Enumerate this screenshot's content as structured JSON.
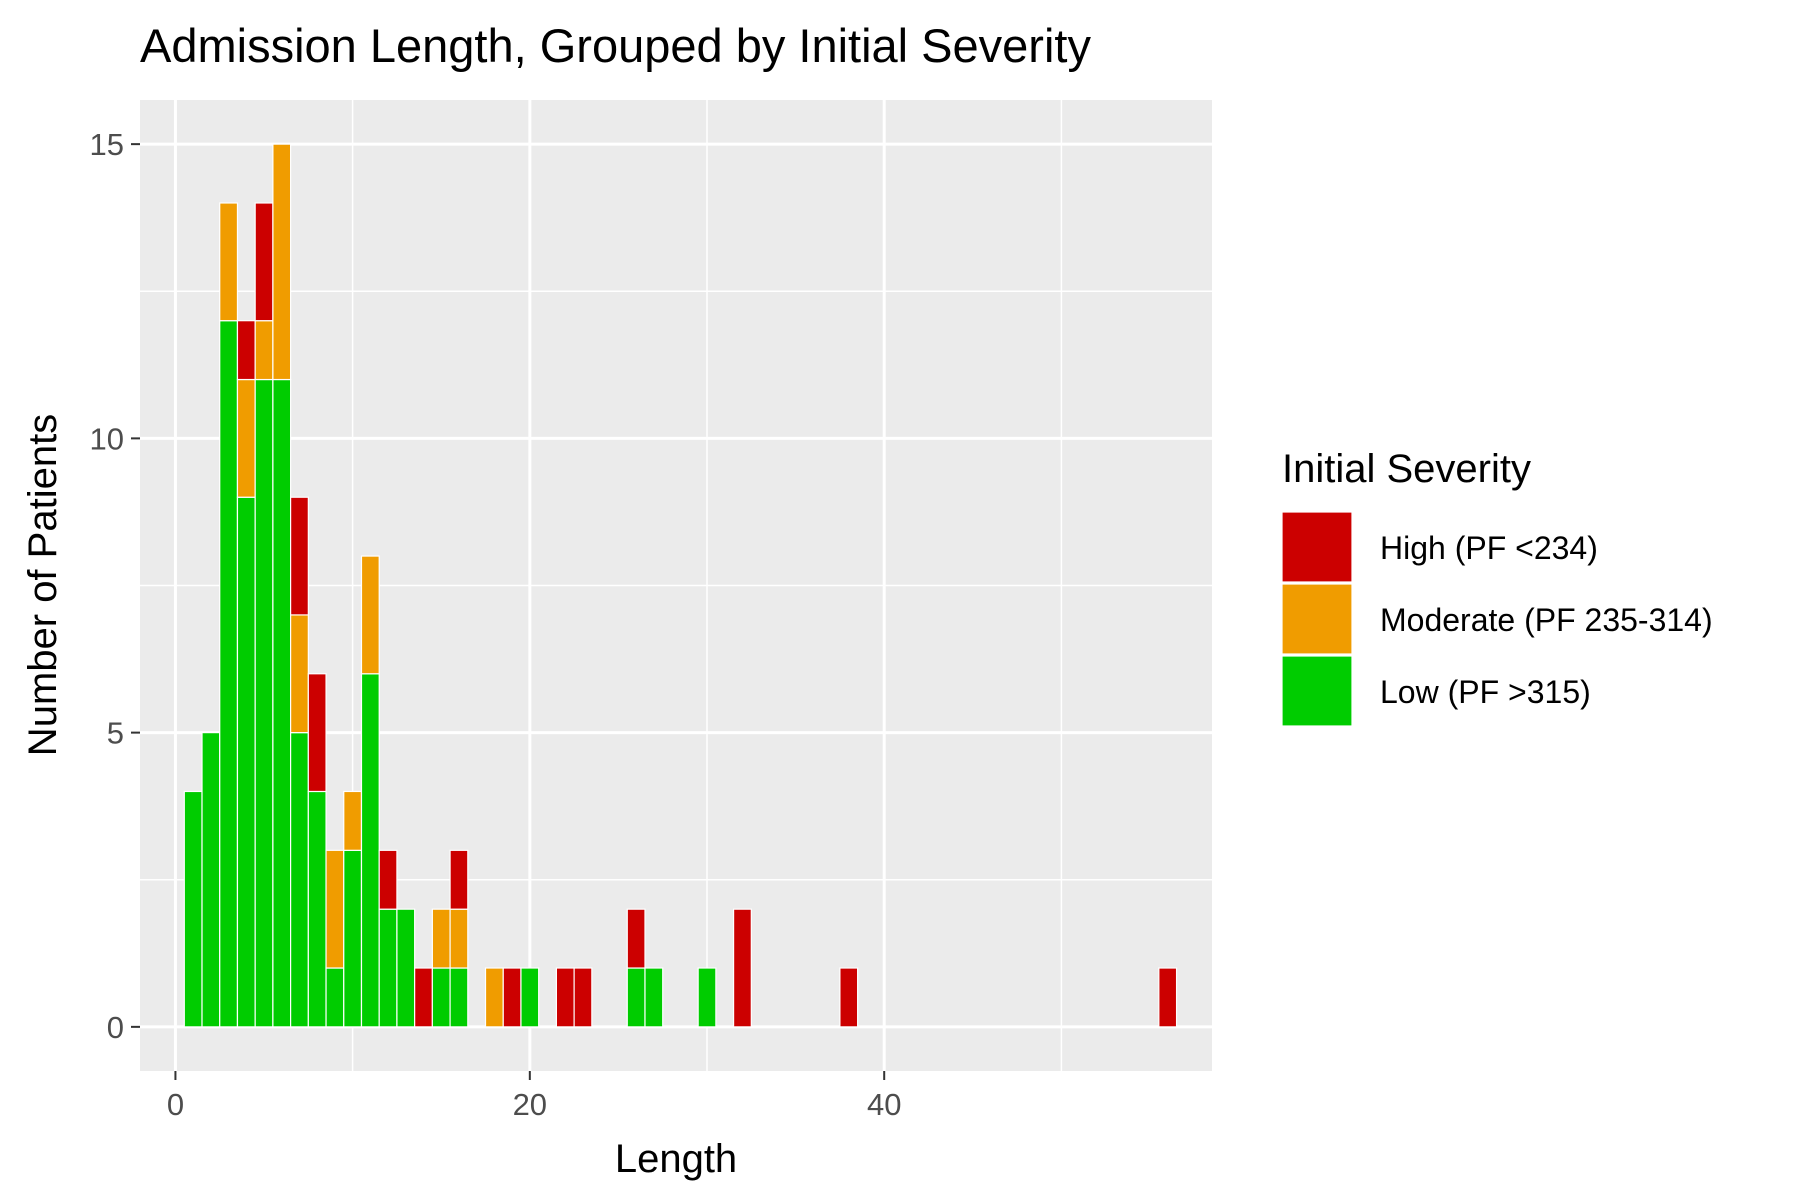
{
  "chart_data": {
    "type": "bar",
    "stacked": true,
    "title": "Admission Length, Grouped by Initial Severity",
    "xlabel": "Length",
    "ylabel": "Number of Patients",
    "xlim": [
      -2,
      58.5
    ],
    "ylim": [
      -0.75,
      15.75
    ],
    "x_ticks": [
      0,
      20,
      40
    ],
    "x_minor_ticks": [
      10,
      30,
      50
    ],
    "y_ticks": [
      0,
      5,
      10,
      15
    ],
    "y_minor_ticks": [
      2.5,
      7.5,
      12.5
    ],
    "grid": true,
    "legend": {
      "title": "Initial Severity",
      "position": "right"
    },
    "x": [
      1,
      2,
      3,
      4,
      5,
      6,
      7,
      8,
      9,
      10,
      11,
      12,
      13,
      14,
      15,
      16,
      18,
      19,
      20,
      22,
      23,
      26,
      27,
      30,
      32,
      38,
      56
    ],
    "series": [
      {
        "name": "High (PF <234)",
        "color": "#CC0000",
        "values": [
          0,
          0,
          0,
          1,
          2,
          0,
          2,
          2,
          0,
          0,
          0,
          1,
          0,
          1,
          0,
          1,
          0,
          1,
          0,
          1,
          1,
          1,
          0,
          0,
          2,
          1,
          1
        ]
      },
      {
        "name": "Moderate (PF 235-314)",
        "color": "#F09C00",
        "values": [
          0,
          0,
          2,
          2,
          1,
          4,
          2,
          0,
          2,
          1,
          2,
          0,
          0,
          0,
          1,
          1,
          1,
          0,
          0,
          0,
          0,
          0,
          0,
          0,
          0,
          0,
          0
        ]
      },
      {
        "name": "Low (PF >315)",
        "color": "#00CC00",
        "values": [
          4,
          5,
          12,
          9,
          11,
          11,
          5,
          4,
          1,
          3,
          6,
          2,
          2,
          0,
          1,
          1,
          0,
          0,
          1,
          0,
          0,
          1,
          1,
          1,
          0,
          0,
          0
        ]
      }
    ]
  }
}
